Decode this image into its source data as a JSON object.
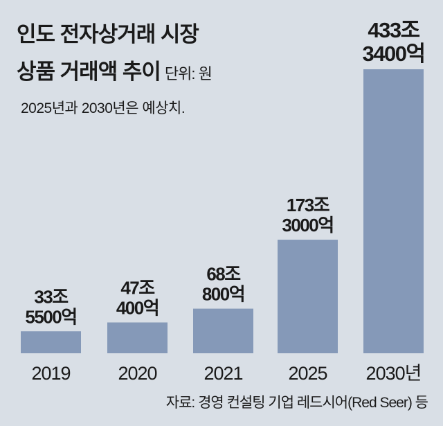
{
  "title_line1": "인도 전자상거래 시장",
  "title_line2": "상품 거래액 추이",
  "unit": "단위: 원",
  "note": "2025년과 2030년은 예상치.",
  "source": "자료: 경영 컨설팅 기업 레드시어(Red Seer) 등",
  "colors": {
    "background": "#d9dfe6",
    "bar": "#8599b8",
    "text": "#1a1a1a"
  },
  "chart_data": {
    "type": "bar",
    "title": "인도 전자상거래 시장 상품 거래액 추이",
    "ylabel": "원 (조)",
    "categories": [
      "2019",
      "2020",
      "2021",
      "2025",
      "2030년"
    ],
    "values": [
      33.55,
      47.04,
      68.08,
      173.3,
      433.34
    ],
    "data_labels": [
      [
        "33조",
        "5500억"
      ],
      [
        "47조",
        "400억"
      ],
      [
        "68조",
        "800억"
      ],
      [
        "173조",
        "3000억"
      ],
      [
        "433조",
        "3400억"
      ]
    ],
    "ylim": [
      0,
      433.34
    ],
    "grid": false
  }
}
